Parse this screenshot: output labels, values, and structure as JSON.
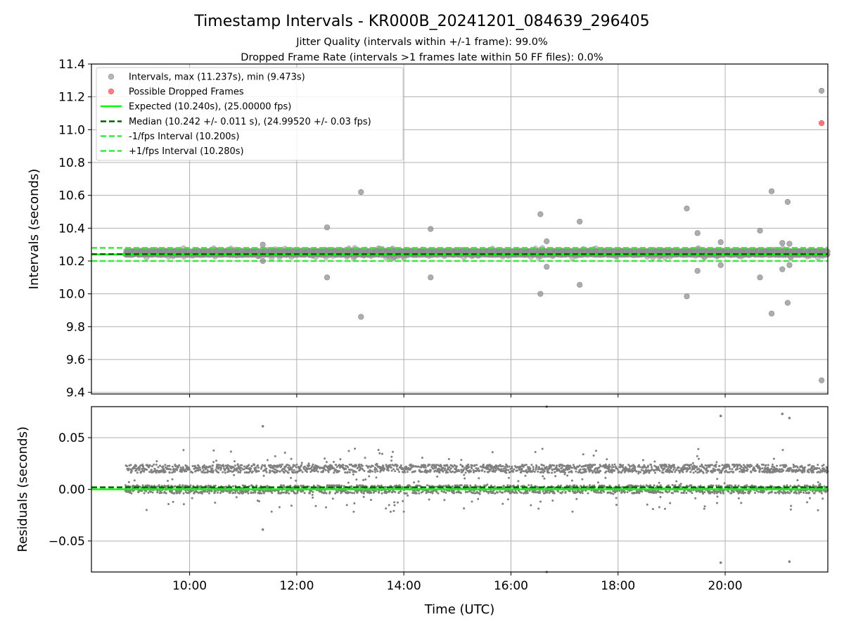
{
  "title": "Timestamp Intervals - KR000B_20241201_084639_296405",
  "subtitle_line1": "Jitter Quality (intervals within +/-1 frame): 99.0%",
  "subtitle_line2": "Dropped Frame Rate (intervals >1 frames late within 50 FF files): 0.0%",
  "colors": {
    "interval_points": "#999999",
    "residual_points": "#808080",
    "dropped_frames": "#ff6666",
    "expected_line": "#00ff00",
    "median_line": "#006400",
    "fps_interval_lines": "#33ee33",
    "grid": "#b0b0b0"
  },
  "chart_data": [
    {
      "type": "scatter",
      "name": "intervals-panel",
      "xlabel": "",
      "ylabel": "Intervals (seconds)",
      "xlim": [
        "08:10",
        "21:55"
      ],
      "ylim": [
        9.39,
        11.4
      ],
      "y_ticks": [
        9.4,
        9.6,
        9.8,
        10.0,
        10.2,
        10.4,
        10.6,
        10.8,
        11.0,
        11.2,
        11.4
      ],
      "y_tick_labels": [
        "9.4",
        "9.6",
        "9.8",
        "10.0",
        "10.2",
        "10.4",
        "10.6",
        "10.8",
        "11.0",
        "11.2",
        "11.4"
      ],
      "grid": true,
      "legend_position": "upper-left",
      "legend": [
        "Intervals, max (11.237s), min (9.473s)",
        "Possible Dropped Frames",
        "Expected (10.240s), (25.00000 fps)",
        "Median (10.242 +/- 0.011 s), (24.99520 +/- 0.03 fps)",
        "-1/fps Interval (10.200s)",
        "+1/fps Interval (10.280s)"
      ],
      "data_range": {
        "start": "08:48",
        "end": "21:55"
      },
      "reference_lines": {
        "expected": 10.24,
        "median": 10.242,
        "minus_one_fps": 10.2,
        "plus_one_fps": 10.28
      },
      "outliers": [
        {
          "x": "11:22",
          "y": 10.3
        },
        {
          "x": "11:22",
          "y": 10.2
        },
        {
          "x": "12:34",
          "y": 10.405
        },
        {
          "x": "12:34",
          "y": 10.1
        },
        {
          "x": "13:12",
          "y": 10.62
        },
        {
          "x": "13:12",
          "y": 9.86
        },
        {
          "x": "14:30",
          "y": 10.395
        },
        {
          "x": "14:30",
          "y": 10.1
        },
        {
          "x": "16:33",
          "y": 10.485
        },
        {
          "x": "16:33",
          "y": 10.0
        },
        {
          "x": "16:40",
          "y": 10.32
        },
        {
          "x": "16:40",
          "y": 10.165
        },
        {
          "x": "17:17",
          "y": 10.44
        },
        {
          "x": "17:17",
          "y": 10.055
        },
        {
          "x": "19:17",
          "y": 10.52
        },
        {
          "x": "19:17",
          "y": 9.985
        },
        {
          "x": "19:29",
          "y": 10.37
        },
        {
          "x": "19:29",
          "y": 10.14
        },
        {
          "x": "19:55",
          "y": 10.315
        },
        {
          "x": "19:55",
          "y": 10.175
        },
        {
          "x": "20:39",
          "y": 10.385
        },
        {
          "x": "20:39",
          "y": 10.1
        },
        {
          "x": "20:52",
          "y": 10.625
        },
        {
          "x": "20:52",
          "y": 9.88
        },
        {
          "x": "21:04",
          "y": 10.31
        },
        {
          "x": "21:04",
          "y": 10.15
        },
        {
          "x": "21:10",
          "y": 10.56
        },
        {
          "x": "21:10",
          "y": 9.945
        },
        {
          "x": "21:12",
          "y": 10.305
        },
        {
          "x": "21:12",
          "y": 10.175
        },
        {
          "x": "21:48",
          "y": 11.237
        },
        {
          "x": "21:48",
          "y": 9.473
        }
      ],
      "dropped_frames": [
        {
          "x": "21:48",
          "y": 11.04
        }
      ]
    },
    {
      "type": "scatter",
      "name": "residuals-panel",
      "xlabel": "Time (UTC)",
      "ylabel": "Residuals (seconds)",
      "xlim": [
        "08:10",
        "21:55"
      ],
      "ylim": [
        -0.08,
        0.08
      ],
      "x_ticks": [
        "10:00",
        "12:00",
        "14:00",
        "16:00",
        "18:00",
        "20:00"
      ],
      "y_ticks": [
        -0.05,
        0.0,
        0.05
      ],
      "y_tick_labels": [
        "−0.05",
        "0.00",
        "0.05"
      ],
      "grid": true,
      "reference_lines": {
        "expected": 0.0,
        "median": 0.002
      },
      "outliers": [
        {
          "x": "11:22",
          "y": 0.061
        },
        {
          "x": "11:22",
          "y": -0.039
        },
        {
          "x": "16:40",
          "y": 0.08
        },
        {
          "x": "16:40",
          "y": -0.08
        },
        {
          "x": "19:55",
          "y": 0.071
        },
        {
          "x": "19:55",
          "y": -0.071
        },
        {
          "x": "21:04",
          "y": 0.073
        },
        {
          "x": "21:12",
          "y": 0.069
        },
        {
          "x": "21:12",
          "y": -0.07
        }
      ]
    }
  ]
}
